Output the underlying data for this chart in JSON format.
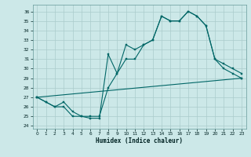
{
  "xlabel": "Humidex (Indice chaleur)",
  "bg_color": "#cce8e8",
  "grid_color": "#aacccc",
  "line_color": "#006666",
  "xlim": [
    -0.5,
    23.5
  ],
  "ylim": [
    23.7,
    36.7
  ],
  "xticks": [
    0,
    1,
    2,
    3,
    4,
    5,
    6,
    7,
    8,
    9,
    10,
    11,
    12,
    13,
    14,
    15,
    16,
    17,
    18,
    19,
    20,
    21,
    22,
    23
  ],
  "yticks": [
    24,
    25,
    26,
    27,
    28,
    29,
    30,
    31,
    32,
    33,
    34,
    35,
    36
  ],
  "line1_x": [
    0,
    1,
    2,
    3,
    4,
    5,
    6,
    7,
    8,
    9,
    10,
    11,
    12,
    13,
    14,
    15,
    16,
    17,
    18,
    19,
    20,
    21,
    22,
    23
  ],
  "line1_y": [
    27.0,
    26.5,
    26.0,
    26.0,
    25.0,
    25.0,
    24.8,
    24.8,
    31.5,
    29.5,
    32.5,
    32.0,
    32.5,
    33.0,
    35.5,
    35.0,
    35.0,
    36.0,
    35.5,
    34.5,
    31.0,
    30.0,
    29.5,
    29.0
  ],
  "line2_x": [
    0,
    1,
    2,
    3,
    4,
    5,
    6,
    7,
    8,
    9,
    10,
    11,
    12,
    13,
    14,
    15,
    16,
    17,
    18,
    19,
    20,
    21,
    22,
    23
  ],
  "line2_y": [
    27.0,
    26.5,
    26.0,
    26.5,
    25.5,
    25.0,
    25.0,
    25.0,
    28.0,
    29.5,
    31.0,
    31.0,
    32.5,
    33.0,
    35.5,
    35.0,
    35.0,
    36.0,
    35.5,
    34.5,
    31.0,
    30.5,
    30.0,
    29.5
  ],
  "line3_x": [
    0,
    23
  ],
  "line3_y": [
    27.0,
    29.0
  ]
}
